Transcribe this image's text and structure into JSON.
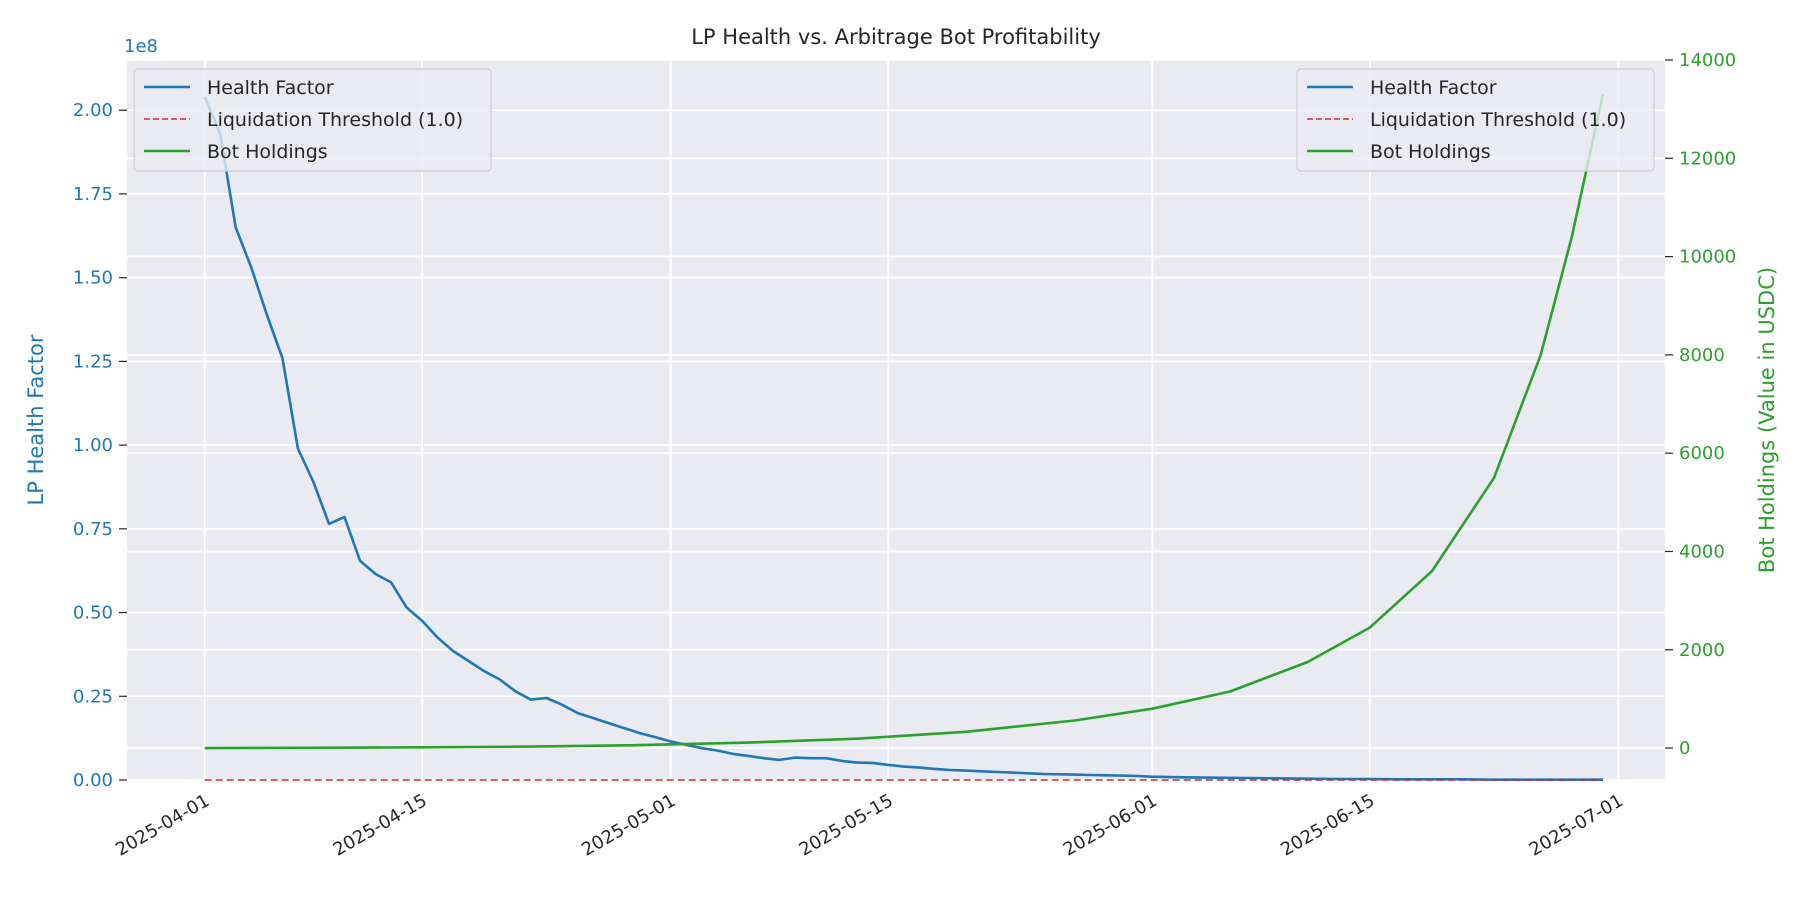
{
  "chart_data": {
    "type": "line",
    "title": "LP Health vs. Arbitrage Bot Profitability",
    "xlabel": "",
    "x_type": "date",
    "xlim": [
      "2025-03-27",
      "2025-07-04"
    ],
    "x_ticks": [
      "2025-04-01",
      "2025-04-15",
      "2025-05-01",
      "2025-05-15",
      "2025-06-01",
      "2025-06-15",
      "2025-07-01"
    ],
    "grid": true,
    "y_left": {
      "label": "LP Health Factor",
      "offset_text": "1e8",
      "lim": [
        0,
        2.15
      ],
      "ticks": [
        0.0,
        0.25,
        0.5,
        0.75,
        1.0,
        1.25,
        1.5,
        1.75,
        2.0
      ],
      "tick_labels": [
        "0.00",
        "0.25",
        "0.50",
        "0.75",
        "1.00",
        "1.25",
        "1.50",
        "1.75",
        "2.00"
      ],
      "color": "#1f77b4"
    },
    "y_right": {
      "label": "Bot Holdings (Value in USDC)",
      "lim": [
        -650,
        14000
      ],
      "ticks": [
        0,
        2000,
        4000,
        6000,
        8000,
        10000,
        12000,
        14000
      ],
      "tick_labels": [
        "0",
        "2000",
        "4000",
        "6000",
        "8000",
        "10000",
        "12000",
        "14000"
      ],
      "color": "#2ca02c"
    },
    "legend_items": [
      {
        "label": "Health Factor",
        "color": "#1f77b4",
        "style": "solid"
      },
      {
        "label": "Liquidation Threshold (1.0)",
        "color": "#d62728",
        "style": "dashed"
      },
      {
        "label": "Bot Holdings",
        "color": "#2ca02c",
        "style": "solid"
      }
    ],
    "legends": [
      "top-left",
      "top-right"
    ],
    "series": [
      {
        "name": "Health Factor",
        "axis": "left",
        "color": "#1f77b4",
        "x": [
          "2025-04-01",
          "2025-04-02",
          "2025-04-03",
          "2025-04-04",
          "2025-04-05",
          "2025-04-06",
          "2025-04-07",
          "2025-04-08",
          "2025-04-09",
          "2025-04-10",
          "2025-04-11",
          "2025-04-12",
          "2025-04-13",
          "2025-04-14",
          "2025-04-15",
          "2025-04-16",
          "2025-04-17",
          "2025-04-18",
          "2025-04-19",
          "2025-04-20",
          "2025-04-21",
          "2025-04-22",
          "2025-04-23",
          "2025-04-24",
          "2025-04-25",
          "2025-04-26",
          "2025-04-27",
          "2025-04-28",
          "2025-04-29",
          "2025-04-30",
          "2025-05-01",
          "2025-05-02",
          "2025-05-03",
          "2025-05-04",
          "2025-05-05",
          "2025-05-06",
          "2025-05-07",
          "2025-05-08",
          "2025-05-09",
          "2025-05-10",
          "2025-05-11",
          "2025-05-12",
          "2025-05-13",
          "2025-05-14",
          "2025-05-15",
          "2025-05-16",
          "2025-05-17",
          "2025-05-18",
          "2025-05-19",
          "2025-05-20",
          "2025-05-21",
          "2025-05-22",
          "2025-05-23",
          "2025-05-24",
          "2025-05-25",
          "2025-05-26",
          "2025-05-27",
          "2025-05-28",
          "2025-05-29",
          "2025-05-30",
          "2025-05-31",
          "2025-06-01",
          "2025-06-03",
          "2025-06-05",
          "2025-06-07",
          "2025-06-09",
          "2025-06-11",
          "2025-06-13",
          "2025-06-15",
          "2025-06-17",
          "2025-06-19",
          "2025-06-21",
          "2025-06-23",
          "2025-06-25",
          "2025-06-27",
          "2025-06-30"
        ],
        "values": [
          2.04,
          1.93,
          1.65,
          1.53,
          1.39,
          1.26,
          0.99,
          0.89,
          0.765,
          0.785,
          0.655,
          0.615,
          0.59,
          0.515,
          0.475,
          0.425,
          0.385,
          0.355,
          0.325,
          0.3,
          0.265,
          0.24,
          0.245,
          0.225,
          0.2,
          0.185,
          0.17,
          0.155,
          0.14,
          0.128,
          0.115,
          0.105,
          0.095,
          0.088,
          0.078,
          0.072,
          0.065,
          0.06,
          0.067,
          0.065,
          0.065,
          0.057,
          0.052,
          0.051,
          0.045,
          0.04,
          0.037,
          0.033,
          0.03,
          0.028,
          0.026,
          0.024,
          0.022,
          0.02,
          0.018,
          0.017,
          0.016,
          0.015,
          0.014,
          0.013,
          0.012,
          0.01,
          0.008,
          0.007,
          0.006,
          0.005,
          0.004,
          0.003,
          0.003,
          0.002,
          0.002,
          0.002,
          0.001,
          0.001,
          0.001,
          0.001
        ]
      },
      {
        "name": "Bot Holdings",
        "axis": "right",
        "color": "#2ca02c",
        "x": [
          "2025-04-01",
          "2025-04-08",
          "2025-04-15",
          "2025-04-22",
          "2025-04-29",
          "2025-05-06",
          "2025-05-13",
          "2025-05-20",
          "2025-05-27",
          "2025-06-01",
          "2025-06-06",
          "2025-06-11",
          "2025-06-15",
          "2025-06-19",
          "2025-06-23",
          "2025-06-26",
          "2025-06-28",
          "2025-06-30"
        ],
        "values": [
          0,
          5,
          15,
          30,
          60,
          110,
          190,
          330,
          560,
          800,
          1150,
          1750,
          2450,
          3600,
          5500,
          8000,
          10400,
          13300
        ]
      },
      {
        "name": "Liquidation Threshold (1.0)",
        "axis": "left",
        "color": "#d62728",
        "style": "dashed",
        "x": [
          "2025-04-01",
          "2025-06-30"
        ],
        "values": [
          1e-08,
          1e-08
        ]
      }
    ]
  }
}
